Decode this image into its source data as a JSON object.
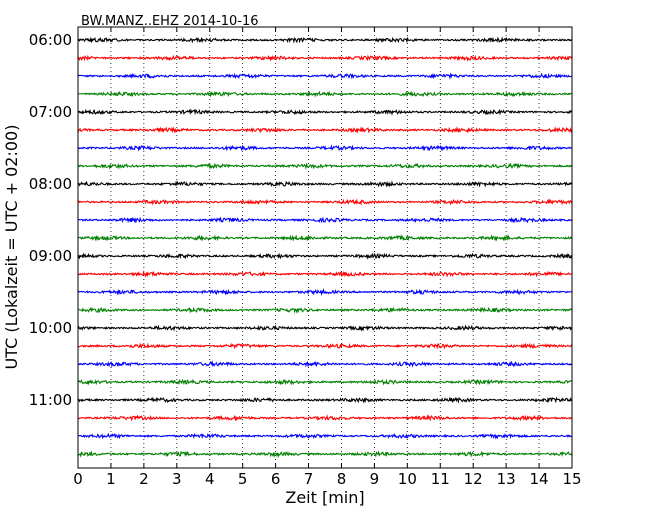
{
  "chart_data": {
    "type": "line",
    "title": "BW.MANZ..EHZ 2014-10-16",
    "xlabel": "Zeit  [min]",
    "ylabel": "UTC (Lokalzeit = UTC + 02:00)",
    "xlim": [
      0,
      15
    ],
    "xticks": [
      0,
      1,
      2,
      3,
      4,
      5,
      6,
      7,
      8,
      9,
      10,
      11,
      12,
      13,
      14,
      15
    ],
    "yticks": [
      "06:00",
      "07:00",
      "08:00",
      "09:00",
      "10:00",
      "11:00"
    ],
    "trace_start_hour": 6,
    "trace_interval_minutes": 15,
    "trace_count": 24,
    "trace_colors": [
      "#000000",
      "#ff0000",
      "#0000ff",
      "#008000"
    ],
    "grid": "x-dotted"
  }
}
